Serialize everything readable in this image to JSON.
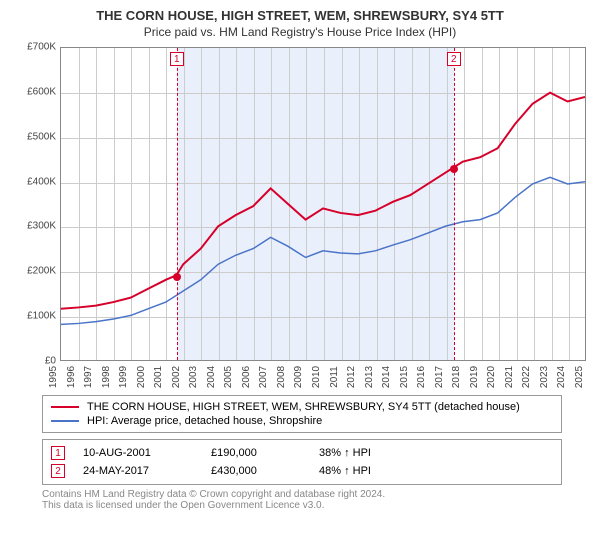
{
  "title": "THE CORN HOUSE, HIGH STREET, WEM, SHREWSBURY, SY4 5TT",
  "subtitle": "Price paid vs. HM Land Registry's House Price Index (HPI)",
  "chart": {
    "type": "line",
    "background_color": "#ffffff",
    "grid_color": "#cccccc",
    "shade_color": "#eaf0fb",
    "x": {
      "min": 1995,
      "max": 2025,
      "ticks": [
        1995,
        1996,
        1997,
        1998,
        1999,
        2000,
        2001,
        2002,
        2003,
        2004,
        2005,
        2006,
        2007,
        2008,
        2009,
        2010,
        2011,
        2012,
        2013,
        2014,
        2015,
        2016,
        2017,
        2018,
        2019,
        2020,
        2021,
        2022,
        2023,
        2024,
        2025
      ]
    },
    "y": {
      "min": 0,
      "max": 700,
      "tick_step": 100,
      "labels": [
        "£0",
        "£100K",
        "£200K",
        "£300K",
        "£400K",
        "£500K",
        "£600K",
        "£700K"
      ]
    },
    "shade": {
      "from": 2001.6,
      "to": 2017.4
    },
    "series": [
      {
        "name": "THE CORN HOUSE, HIGH STREET, WEM, SHREWSBURY, SY4 5TT (detached house)",
        "color": "#d6002a",
        "width": 2,
        "points": [
          [
            1995,
            115
          ],
          [
            1996,
            118
          ],
          [
            1997,
            122
          ],
          [
            1998,
            130
          ],
          [
            1999,
            140
          ],
          [
            2000,
            160
          ],
          [
            2001,
            180
          ],
          [
            2001.6,
            190
          ],
          [
            2002,
            215
          ],
          [
            2003,
            250
          ],
          [
            2004,
            300
          ],
          [
            2005,
            325
          ],
          [
            2006,
            345
          ],
          [
            2007,
            385
          ],
          [
            2008,
            350
          ],
          [
            2009,
            315
          ],
          [
            2010,
            340
          ],
          [
            2011,
            330
          ],
          [
            2012,
            325
          ],
          [
            2013,
            335
          ],
          [
            2014,
            355
          ],
          [
            2015,
            370
          ],
          [
            2016,
            395
          ],
          [
            2017,
            420
          ],
          [
            2017.4,
            430
          ],
          [
            2018,
            445
          ],
          [
            2019,
            455
          ],
          [
            2020,
            475
          ],
          [
            2021,
            530
          ],
          [
            2022,
            575
          ],
          [
            2023,
            600
          ],
          [
            2024,
            580
          ],
          [
            2025,
            590
          ]
        ]
      },
      {
        "name": "HPI: Average price, detached house, Shropshire",
        "color": "#4a74c9",
        "width": 1.5,
        "points": [
          [
            1995,
            80
          ],
          [
            1996,
            82
          ],
          [
            1997,
            86
          ],
          [
            1998,
            92
          ],
          [
            1999,
            100
          ],
          [
            2000,
            115
          ],
          [
            2001,
            130
          ],
          [
            2002,
            155
          ],
          [
            2003,
            180
          ],
          [
            2004,
            215
          ],
          [
            2005,
            235
          ],
          [
            2006,
            250
          ],
          [
            2007,
            275
          ],
          [
            2008,
            255
          ],
          [
            2009,
            230
          ],
          [
            2010,
            245
          ],
          [
            2011,
            240
          ],
          [
            2012,
            238
          ],
          [
            2013,
            245
          ],
          [
            2014,
            258
          ],
          [
            2015,
            270
          ],
          [
            2016,
            285
          ],
          [
            2017,
            300
          ],
          [
            2018,
            310
          ],
          [
            2019,
            315
          ],
          [
            2020,
            330
          ],
          [
            2021,
            365
          ],
          [
            2022,
            395
          ],
          [
            2023,
            410
          ],
          [
            2024,
            395
          ],
          [
            2025,
            400
          ]
        ]
      }
    ],
    "markers": [
      {
        "n": "1",
        "x": 2001.6,
        "y": 190,
        "color": "#d6002a"
      },
      {
        "n": "2",
        "x": 2017.4,
        "y": 430,
        "color": "#d6002a"
      }
    ]
  },
  "legend": [
    {
      "color": "#d6002a",
      "label": "THE CORN HOUSE, HIGH STREET, WEM, SHREWSBURY, SY4 5TT (detached house)"
    },
    {
      "color": "#4a74c9",
      "label": "HPI: Average price, detached house, Shropshire"
    }
  ],
  "sales": [
    {
      "n": "1",
      "color": "#d6002a",
      "date": "10-AUG-2001",
      "price": "£190,000",
      "pct": "38% ↑ HPI"
    },
    {
      "n": "2",
      "color": "#d6002a",
      "date": "24-MAY-2017",
      "price": "£430,000",
      "pct": "48% ↑ HPI"
    }
  ],
  "footer": {
    "line1": "Contains HM Land Registry data © Crown copyright and database right 2024.",
    "line2": "This data is licensed under the Open Government Licence v3.0."
  }
}
